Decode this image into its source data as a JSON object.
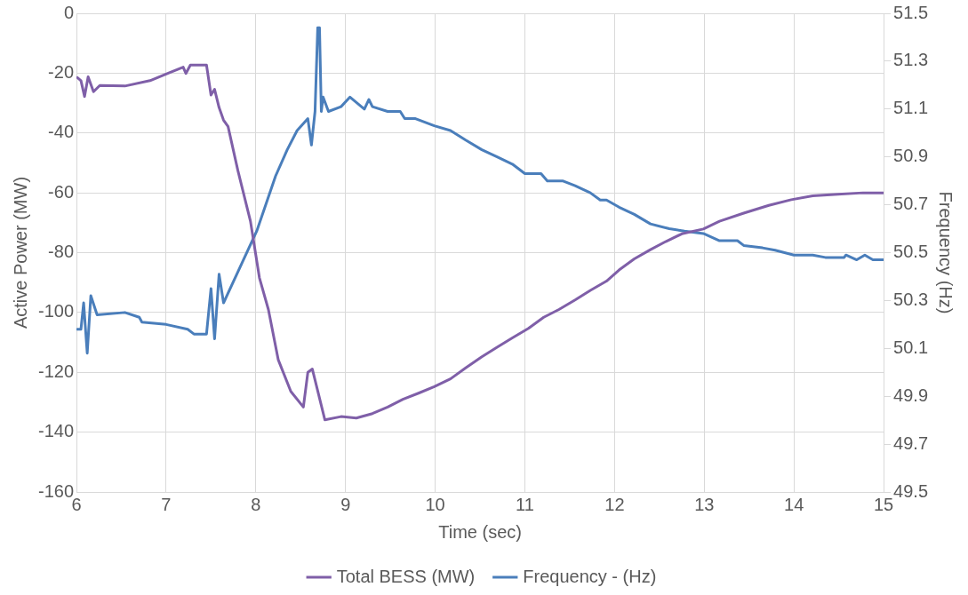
{
  "chart_data": {
    "type": "line",
    "xlabel": "Time (sec)",
    "ylabel": "Active Power (MW)",
    "y2label": "Frequency (Hz)",
    "xlim": [
      6,
      15
    ],
    "xticks": [
      6,
      7,
      8,
      9,
      10,
      11,
      12,
      13,
      14,
      15
    ],
    "ylim": [
      -160,
      0
    ],
    "yticks": [
      -160,
      -140,
      -120,
      -100,
      -80,
      -60,
      -40,
      -20,
      0
    ],
    "y2lim": [
      49.5,
      51.5
    ],
    "y2ticks": [
      49.5,
      49.7,
      49.9,
      50.1,
      50.3,
      50.5,
      50.7,
      50.9,
      51.1,
      51.3,
      51.5
    ],
    "grid": true,
    "legend": "bottom",
    "marker": "none",
    "line_style": "solid",
    "series": [
      {
        "name": "Total BESS (MW)",
        "color": "#7f5fa8",
        "x": [
          6.01,
          6.05,
          6.09,
          6.13,
          6.19,
          6.26,
          6.54,
          6.82,
          7.03,
          7.19,
          7.22,
          7.27,
          7.45,
          7.5,
          7.54,
          7.59,
          7.64,
          7.69,
          7.8,
          7.94,
          8.04,
          8.14,
          8.25,
          8.39,
          8.53,
          8.58,
          8.63,
          8.77,
          8.95,
          9.12,
          9.3,
          9.47,
          9.64,
          9.82,
          9.99,
          10.17,
          10.34,
          10.52,
          10.69,
          10.86,
          11.04,
          11.21,
          11.38,
          11.56,
          11.73,
          11.91,
          12.05,
          12.22,
          12.4,
          12.57,
          12.75,
          12.99,
          13.17,
          13.44,
          13.72,
          13.97,
          14.21,
          14.49,
          14.77,
          15.0
        ],
        "values": [
          -21.5,
          -22.5,
          -27.8,
          -21.2,
          -26.2,
          -24.1,
          -24.3,
          -22.5,
          -19.9,
          -18,
          -20.1,
          -17.3,
          -17.3,
          -27.3,
          -25.4,
          -31.5,
          -35.7,
          -37.8,
          -52.6,
          -69.5,
          -88.4,
          -99,
          -115.8,
          -126.4,
          -131.6,
          -120,
          -118.9,
          -135.9,
          -134.8,
          -135.3,
          -133.8,
          -131.6,
          -129,
          -126.9,
          -124.8,
          -122.2,
          -118.5,
          -114.8,
          -111.6,
          -108.5,
          -105.3,
          -101.6,
          -99,
          -95.8,
          -92.6,
          -89.5,
          -85.8,
          -82.1,
          -79,
          -76.3,
          -73.7,
          -72.1,
          -69.5,
          -66.8,
          -64.2,
          -62.3,
          -61,
          -60.5,
          -60,
          -60
        ]
      },
      {
        "name": "Frequency - (Hz)",
        "color": "#4a7ebb",
        "axis": "y2",
        "x": [
          6.01,
          6.05,
          6.08,
          6.12,
          6.16,
          6.23,
          6.54,
          6.7,
          6.73,
          7.0,
          7.24,
          7.31,
          7.45,
          7.5,
          7.54,
          7.59,
          7.64,
          7.8,
          8.01,
          8.22,
          8.35,
          8.46,
          8.58,
          8.62,
          8.66,
          8.69,
          8.71,
          8.73,
          8.75,
          8.81,
          8.95,
          9.05,
          9.21,
          9.26,
          9.3,
          9.47,
          9.61,
          9.66,
          9.78,
          9.99,
          10.17,
          10.34,
          10.52,
          10.69,
          10.86,
          11.0,
          11.18,
          11.25,
          11.42,
          11.56,
          11.73,
          11.84,
          11.91,
          12.05,
          12.22,
          12.4,
          12.61,
          12.78,
          12.99,
          13.17,
          13.37,
          13.44,
          13.65,
          13.79,
          14.0,
          14.21,
          14.35,
          14.56,
          14.58,
          14.7,
          14.79,
          14.88,
          15.0
        ],
        "values": [
          50.18,
          50.18,
          50.29,
          50.08,
          50.32,
          50.24,
          50.25,
          50.23,
          50.21,
          50.2,
          50.18,
          50.16,
          50.16,
          50.35,
          50.14,
          50.41,
          50.29,
          50.42,
          50.59,
          50.82,
          50.93,
          51.01,
          51.06,
          50.95,
          51.09,
          51.44,
          51.44,
          51.09,
          51.15,
          51.09,
          51.11,
          51.15,
          51.1,
          51.14,
          51.11,
          51.09,
          51.09,
          51.06,
          51.06,
          51.03,
          51.01,
          50.97,
          50.93,
          50.9,
          50.87,
          50.83,
          50.83,
          50.8,
          50.8,
          50.78,
          50.75,
          50.72,
          50.72,
          50.69,
          50.66,
          50.62,
          50.6,
          50.59,
          50.58,
          50.55,
          50.55,
          50.53,
          50.52,
          50.51,
          50.49,
          50.49,
          50.48,
          50.48,
          50.49,
          50.47,
          50.49,
          50.47,
          50.47
        ]
      }
    ]
  }
}
